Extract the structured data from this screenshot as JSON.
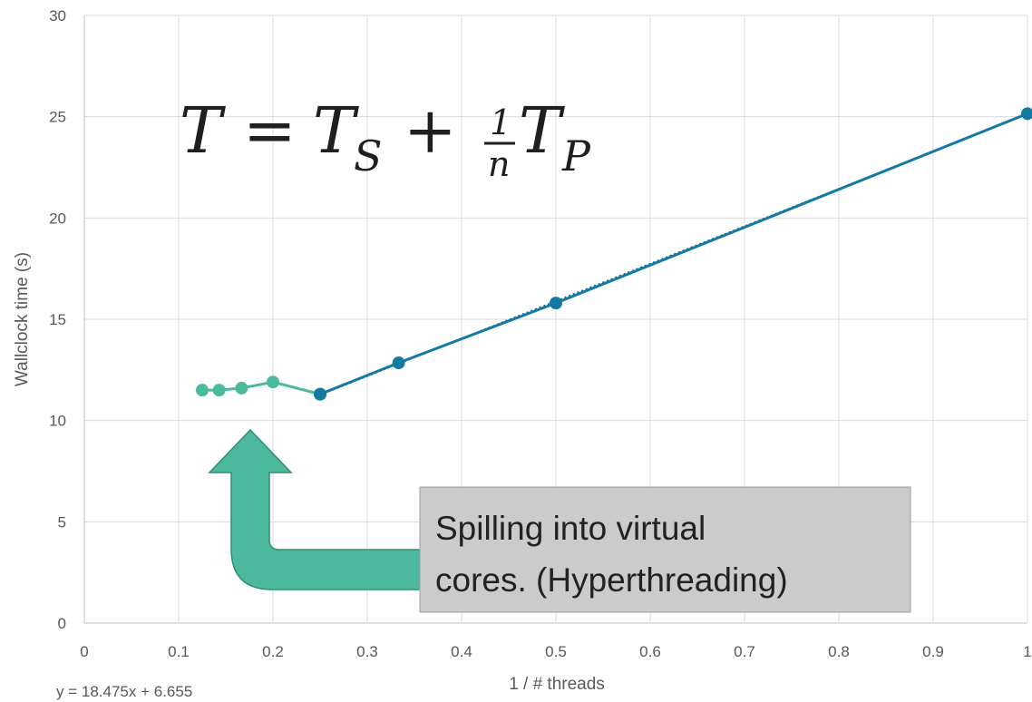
{
  "chart_data": {
    "type": "scatter",
    "xlabel": "1 / # threads",
    "ylabel": "Wallclock time (s)",
    "xlim": [
      0,
      1
    ],
    "ylim": [
      0,
      30
    ],
    "x_ticks": [
      "0",
      "0.1",
      "0.2",
      "0.3",
      "0.4",
      "0.5",
      "0.6",
      "0.7",
      "0.8",
      "0.9",
      "1"
    ],
    "y_ticks": [
      "0",
      "5",
      "10",
      "15",
      "20",
      "25",
      "30"
    ],
    "grid": true,
    "series": [
      {
        "color": "#4cb89e",
        "x": [
          0.125,
          0.1429,
          0.1667,
          0.2,
          0.25
        ],
        "y": [
          11.5,
          11.5,
          11.6,
          11.9,
          11.3
        ]
      },
      {
        "color": "#1479a3",
        "x": [
          0.25,
          0.3333,
          0.5,
          1.0
        ],
        "y": [
          11.3,
          12.85,
          15.8,
          25.15
        ]
      }
    ],
    "trendline": {
      "equation": "y = 18.475x + 6.655",
      "slope": 18.475,
      "intercept": 6.655,
      "style": "dotted",
      "color": "#0f5e80"
    },
    "annotations": {
      "formula": {
        "T": "T",
        "eq": "=",
        "Ts": "T",
        "s_sub": "S",
        "plus": "+",
        "num": "1",
        "den": "n",
        "Tp": "T",
        "p_sub": "P"
      },
      "callout": {
        "line1": "Spilling into virtual",
        "line2": "cores. (Hyperthreading)"
      },
      "arrow_color": "#4cb89e"
    }
  }
}
